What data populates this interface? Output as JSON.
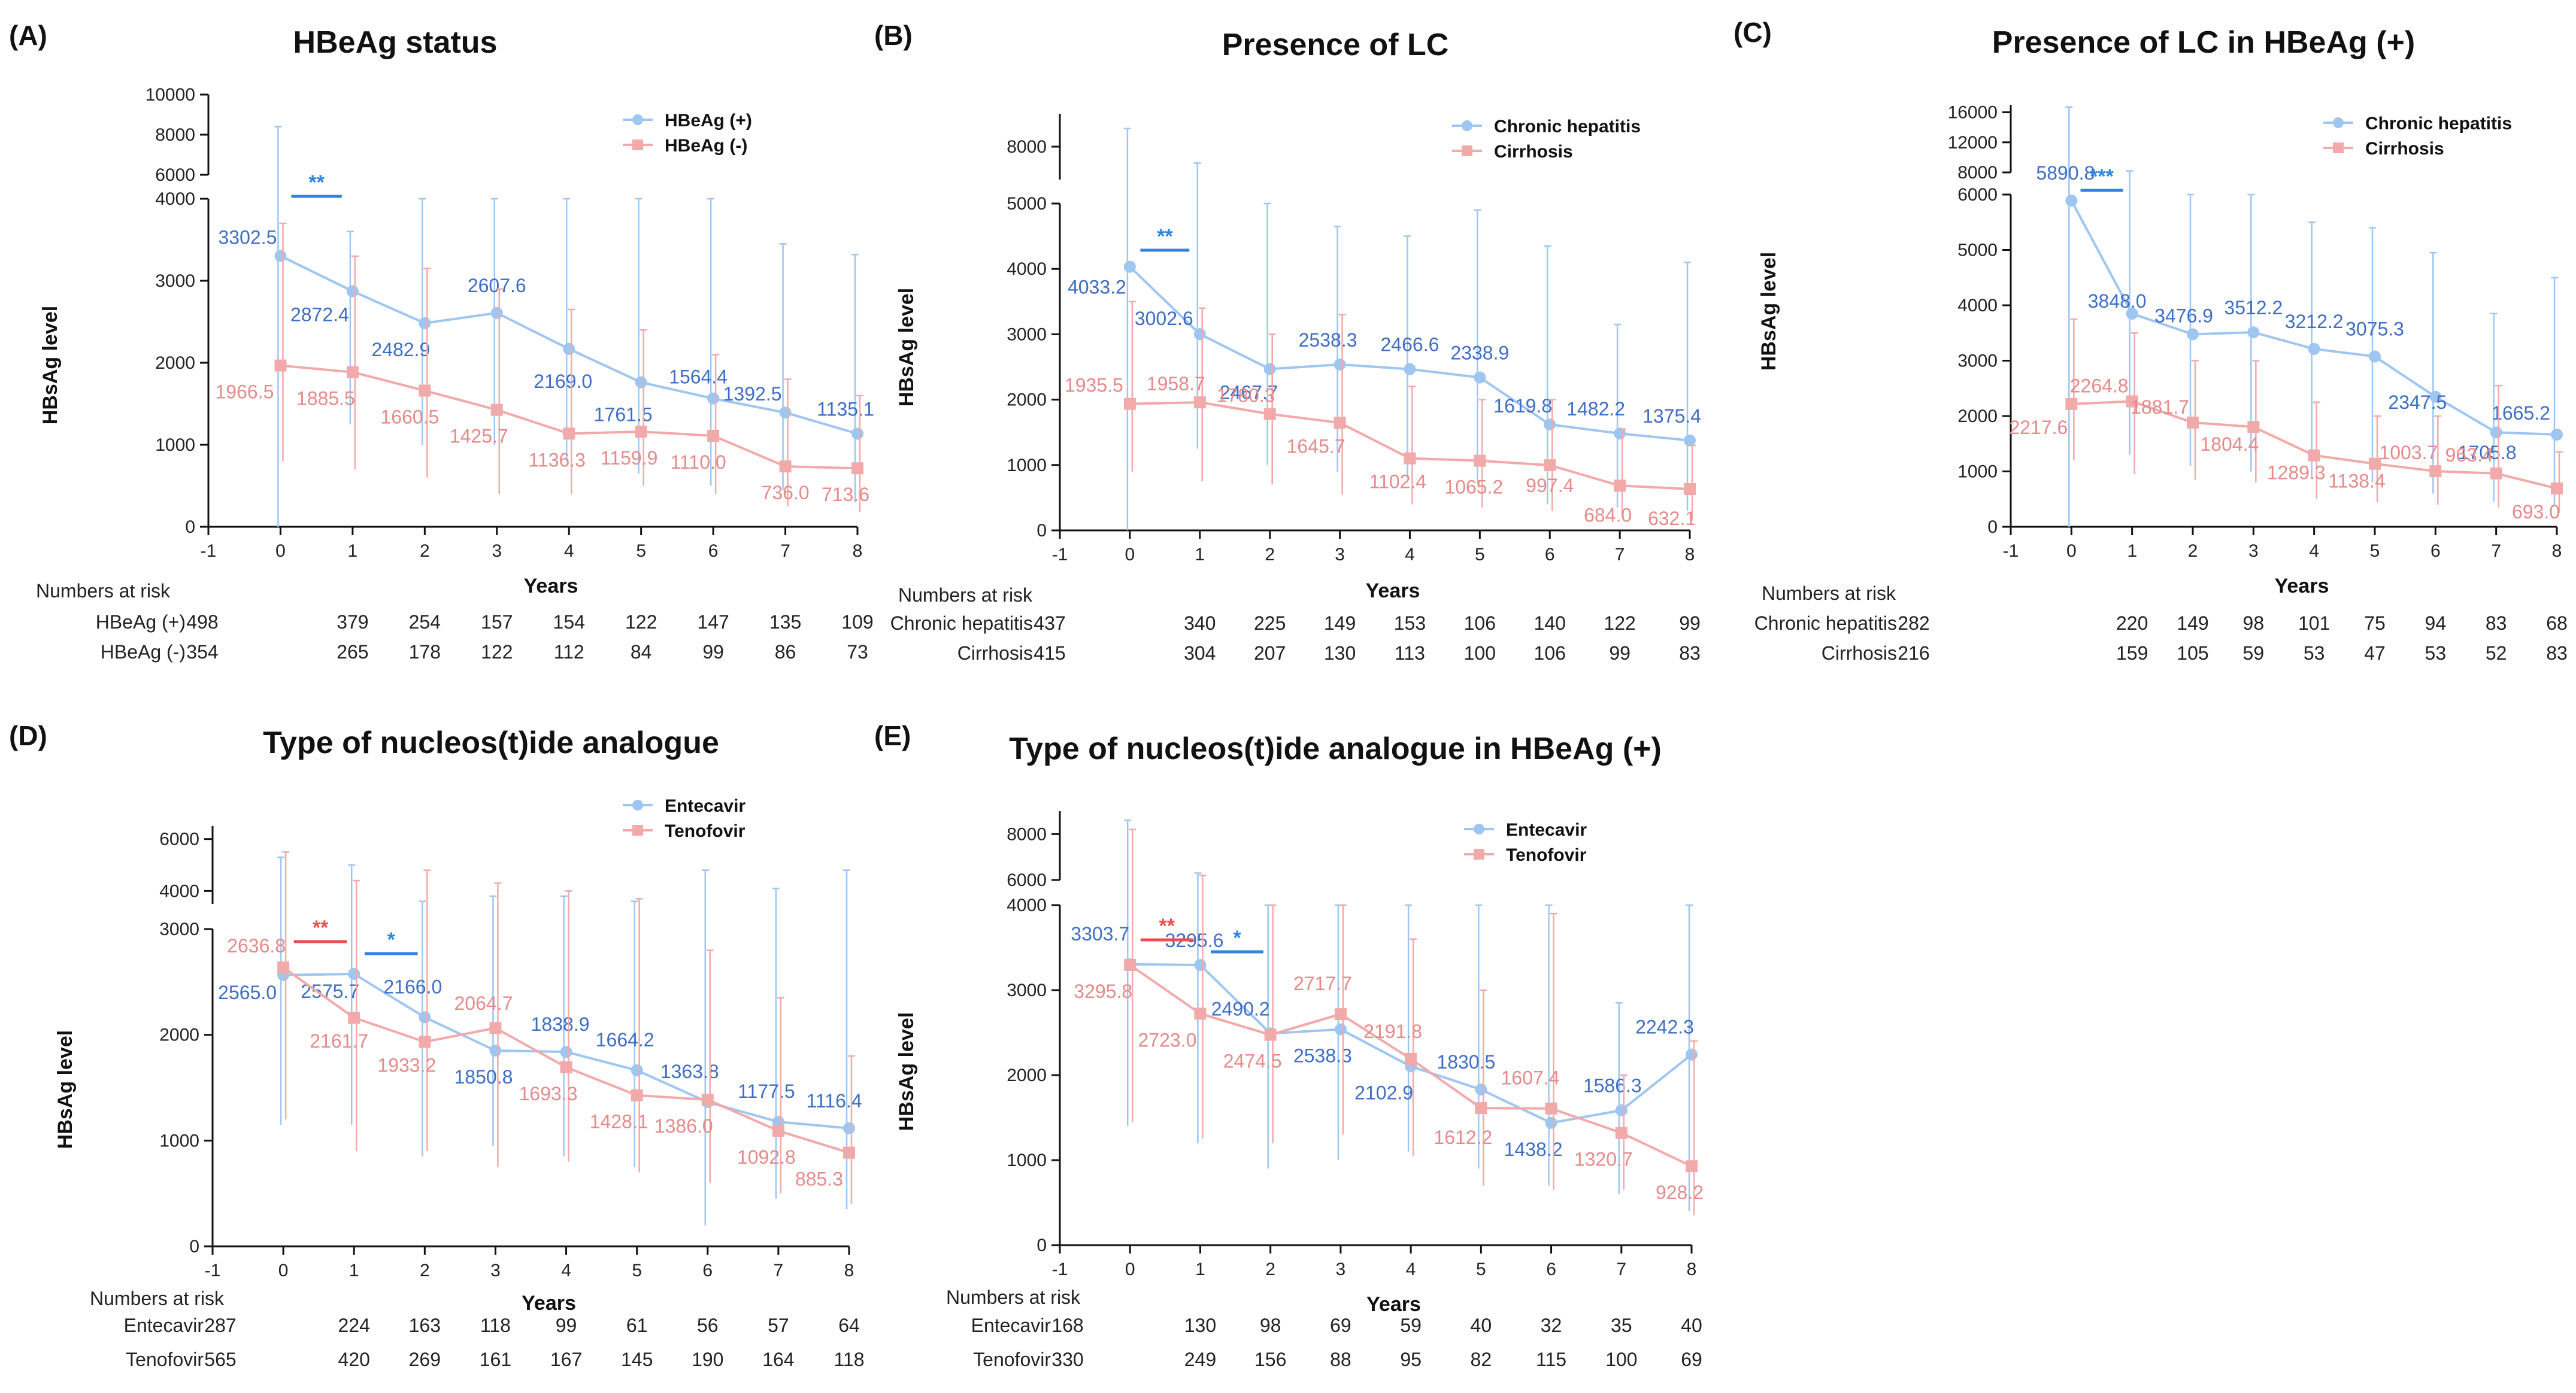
{
  "colors": {
    "blue_line": "#9ec6f0",
    "blue_text": "#3e6ec4",
    "blue_sig": "#2f84e0",
    "red_line": "#f2a9a9",
    "red_text": "#e68a8a",
    "red_sig": "#ec4f4f",
    "axis": "#111111"
  },
  "chart_data": [
    {
      "letter": "(A)",
      "title": "HBeAg status",
      "type": "line",
      "xlabel": "Years",
      "ylabel": "HBsAg level",
      "x": [
        0,
        1,
        2,
        3,
        4,
        5,
        6,
        7,
        8
      ],
      "xlim": [
        -1,
        8
      ],
      "x_ticks": [
        "-1",
        "0",
        "1",
        "2",
        "3",
        "4",
        "5",
        "6",
        "7",
        "8"
      ],
      "ylim_lower": [
        0,
        4000
      ],
      "y_ticks_lower": [
        "0",
        "1000",
        "2000",
        "3000",
        "4000"
      ],
      "ylim_upper": [
        6000,
        10000
      ],
      "y_ticks_upper": [
        "6000",
        "8000",
        "10000"
      ],
      "legend": "top-right",
      "series": [
        {
          "name": "HBeAg (+)",
          "marker": "circle",
          "color": "blue",
          "values": [
            3302.5,
            2872.4,
            2482.9,
            2607.6,
            2169.0,
            1761.5,
            1564.4,
            1392.5,
            1135.1
          ],
          "labels": [
            "3302.5",
            "2872.4",
            "2482.9",
            "2607.6",
            "2169.0",
            "1761.5",
            "1564.4",
            "1392.5",
            "1135.1"
          ],
          "err_up": [
            8400,
            3600,
            4000,
            4000,
            4000,
            4000,
            4000,
            3450,
            3320
          ],
          "err_low": [
            0,
            1250,
            1000,
            1000,
            800,
            650,
            500,
            450,
            300
          ]
        },
        {
          "name": "HBeAg (-)",
          "marker": "square",
          "color": "red",
          "values": [
            1966.5,
            1885.5,
            1660.5,
            1425.7,
            1136.3,
            1159.9,
            1110.0,
            736.0,
            713.6
          ],
          "labels": [
            "1966.5",
            "1885.5",
            "1660.5",
            "1425.7",
            "1136.3",
            "1159.9",
            "1110.0",
            "736.0",
            "713.6"
          ],
          "err_up": [
            3700,
            3300,
            3150,
            2900,
            2650,
            2400,
            2100,
            1800,
            1600
          ],
          "err_low": [
            800,
            700,
            600,
            400,
            400,
            500,
            400,
            250,
            180
          ]
        }
      ],
      "significance": [
        {
          "text": "**",
          "x_from": 0.15,
          "x_to": 0.85,
          "color": "blue"
        }
      ],
      "risk_header": "Numbers at risk",
      "risk": [
        {
          "label": "HBeAg (+)",
          "values": [
            "498",
            "379",
            "254",
            "157",
            "154",
            "122",
            "147",
            "135",
            "109"
          ]
        },
        {
          "label": "HBeAg (-)",
          "values": [
            "354",
            "265",
            "178",
            "122",
            "112",
            "84",
            "99",
            "86",
            "73"
          ]
        }
      ]
    },
    {
      "letter": "(B)",
      "title": "Presence of LC",
      "type": "line",
      "xlabel": "Years",
      "ylabel": "HBsAg level",
      "x": [
        0,
        1,
        2,
        3,
        4,
        5,
        6,
        7,
        8
      ],
      "xlim": [
        -1,
        8
      ],
      "x_ticks": [
        "-1",
        "0",
        "1",
        "2",
        "3",
        "4",
        "5",
        "6",
        "7",
        "8"
      ],
      "ylim_lower": [
        0,
        5000
      ],
      "y_ticks_lower": [
        "0",
        "1000",
        "2000",
        "3000",
        "4000",
        "5000"
      ],
      "ylim_upper": [
        7000,
        9000
      ],
      "y_ticks_upper": [
        "8000"
      ],
      "legend": "top-right",
      "series": [
        {
          "name": "Chronic hepatitis",
          "marker": "circle",
          "color": "blue",
          "values": [
            4033.2,
            3002.6,
            2467.7,
            2538.3,
            2466.6,
            2338.9,
            1619.8,
            1482.2,
            1375.4
          ],
          "labels": [
            "4033.2",
            "3002.6",
            "2467.7",
            "2538.3",
            "2466.6",
            "2338.9",
            "1619.8",
            "1482.2",
            "1375.4"
          ],
          "err_up": [
            8550,
            7500,
            5000,
            4650,
            4500,
            4900,
            4350,
            3150,
            4100
          ],
          "err_low": [
            0,
            1250,
            1000,
            900,
            800,
            700,
            400,
            350,
            300
          ]
        },
        {
          "name": "Cirrhosis",
          "marker": "square",
          "color": "red",
          "values": [
            1935.5,
            1958.7,
            1780.3,
            1645.7,
            1102.4,
            1065.2,
            997.4,
            684.0,
            632.1
          ],
          "labels": [
            "1935.5",
            "1958.7",
            "1780.3",
            "1645.7",
            "1102.4",
            "1065.2",
            "997.4",
            "684.0",
            "632.1"
          ],
          "err_up": [
            3500,
            3400,
            3000,
            3300,
            2200,
            2000,
            2000,
            1550,
            1300
          ],
          "err_low": [
            900,
            750,
            700,
            550,
            400,
            350,
            300,
            200,
            150
          ]
        }
      ],
      "significance": [
        {
          "text": "**",
          "x_from": 0.15,
          "x_to": 0.85,
          "color": "blue"
        }
      ],
      "risk_header": "Numbers at risk",
      "risk": [
        {
          "label": "Chronic hepatitis",
          "values": [
            "437",
            "340",
            "225",
            "149",
            "153",
            "106",
            "140",
            "122",
            "99"
          ]
        },
        {
          "label": "Cirrhosis",
          "values": [
            "415",
            "304",
            "207",
            "130",
            "113",
            "100",
            "106",
            "99",
            "83"
          ]
        }
      ]
    },
    {
      "letter": "(C)",
      "title": "Presence of LC in HBeAg (+)",
      "type": "line",
      "xlabel": "Years",
      "ylabel": "HBsAg level",
      "x": [
        0,
        1,
        2,
        3,
        4,
        5,
        6,
        7,
        8
      ],
      "xlim": [
        -1,
        8
      ],
      "x_ticks": [
        "-1",
        "0",
        "1",
        "2",
        "3",
        "4",
        "5",
        "6",
        "7",
        "8"
      ],
      "ylim_lower": [
        0,
        6000
      ],
      "y_ticks_lower": [
        "0",
        "1000",
        "2000",
        "3000",
        "4000",
        "5000",
        "6000"
      ],
      "ylim_upper": [
        8000,
        17000
      ],
      "y_ticks_upper": [
        "8000",
        "12000",
        "16000"
      ],
      "legend": "top-right",
      "series": [
        {
          "name": "Chronic hepatitis",
          "marker": "circle",
          "color": "blue",
          "values": [
            5890.8,
            3848.0,
            3476.9,
            3512.2,
            3212.2,
            3075.3,
            2347.5,
            1705.8,
            1665.2
          ],
          "labels": [
            "5890.8",
            "3848.0",
            "3476.9",
            "3512.2",
            "3212.2",
            "3075.3",
            "2347.5",
            "1705.8",
            "1665.2"
          ],
          "err_up": [
            16700,
            8200,
            6000,
            6000,
            5500,
            5400,
            4950,
            3850,
            4500
          ],
          "err_low": [
            0,
            1300,
            1100,
            1000,
            900,
            800,
            600,
            450,
            400
          ]
        },
        {
          "name": "Cirrhosis",
          "marker": "square",
          "color": "red",
          "values": [
            2217.6,
            2264.8,
            1881.7,
            1804.4,
            1289.3,
            1138.4,
            1003.7,
            963.4,
            693.0
          ],
          "labels": [
            "2217.6",
            "2264.8",
            "1881.7",
            "1804.4",
            "1289.3",
            "1138.4",
            "1003.7",
            "963.4",
            "693.0"
          ],
          "err_up": [
            3750,
            3500,
            3000,
            3000,
            2250,
            2000,
            2000,
            2550,
            1350
          ],
          "err_low": [
            1200,
            950,
            850,
            800,
            500,
            450,
            400,
            350,
            250
          ]
        }
      ],
      "significance": [
        {
          "text": "***",
          "x_from": 0.15,
          "x_to": 0.85,
          "color": "blue"
        }
      ],
      "risk_header": "Numbers at risk",
      "risk": [
        {
          "label": "Chronic hepatitis",
          "values": [
            "282",
            "220",
            "149",
            "98",
            "101",
            "75",
            "94",
            "83",
            "68"
          ]
        },
        {
          "label": "Cirrhosis",
          "values": [
            "216",
            "159",
            "105",
            "59",
            "53",
            "47",
            "53",
            "52",
            "83"
          ]
        }
      ]
    },
    {
      "letter": "(D)",
      "title": "Type of nucleos(t)ide analogue",
      "type": "line",
      "xlabel": "Years",
      "ylabel": "HBsAg level",
      "x": [
        0,
        1,
        2,
        3,
        4,
        5,
        6,
        7,
        8
      ],
      "xlim": [
        -1,
        8
      ],
      "x_ticks": [
        "-1",
        "0",
        "1",
        "2",
        "3",
        "4",
        "5",
        "6",
        "7",
        "8"
      ],
      "ylim_lower": [
        0,
        3000
      ],
      "y_ticks_lower": [
        "0",
        "1000",
        "2000",
        "3000"
      ],
      "ylim_upper": [
        3500,
        6500
      ],
      "y_ticks_upper": [
        "4000",
        "6000"
      ],
      "legend": "top-right",
      "series": [
        {
          "name": "Entecavir",
          "marker": "circle",
          "color": "blue",
          "values": [
            2565.0,
            2575.7,
            2166.0,
            1850.8,
            1838.9,
            1664.2,
            1363.8,
            1177.5,
            1116.4
          ],
          "labels": [
            "2565.0",
            "2575.7",
            "2166.0",
            "1850.8",
            "1838.9",
            "1664.2",
            "1363.8",
            "1177.5",
            "1116.4"
          ],
          "err_up": [
            5300,
            5000,
            3600,
            3800,
            3800,
            3600,
            4800,
            4100,
            4800
          ],
          "err_low": [
            1150,
            1150,
            850,
            950,
            850,
            750,
            200,
            450,
            350
          ]
        },
        {
          "name": "Tenofovir",
          "marker": "square",
          "color": "red",
          "values": [
            2636.8,
            2161.7,
            1933.2,
            2064.7,
            1693.3,
            1428.1,
            1386.0,
            1092.8,
            885.3
          ],
          "labels": [
            "2636.8",
            "2161.7",
            "1933.2",
            "2064.7",
            "1693.3",
            "1428.1",
            "1386.0",
            "1092.8",
            "885.3"
          ],
          "err_up": [
            5500,
            4400,
            4800,
            4300,
            4000,
            3700,
            2800,
            2350,
            1800
          ],
          "err_low": [
            1200,
            900,
            900,
            750,
            800,
            700,
            600,
            500,
            400
          ]
        }
      ],
      "significance": [
        {
          "text": "**",
          "x_from": 0.15,
          "x_to": 0.9,
          "color": "red"
        },
        {
          "text": "*",
          "x_from": 1.15,
          "x_to": 1.9,
          "color": "blue"
        }
      ],
      "risk_header": "Numbers at risk",
      "risk": [
        {
          "label": "Entecavir",
          "values": [
            "287",
            "224",
            "163",
            "118",
            "99",
            "61",
            "56",
            "57",
            "64"
          ]
        },
        {
          "label": "Tenofovir",
          "values": [
            "565",
            "420",
            "269",
            "161",
            "167",
            "145",
            "190",
            "164",
            "118"
          ]
        }
      ]
    },
    {
      "letter": "(E)",
      "title": "Type of nucleos(t)ide analogue in HBeAg (+)",
      "type": "line",
      "xlabel": "Years",
      "ylabel": "HBsAg level",
      "x": [
        0,
        1,
        2,
        3,
        4,
        5,
        6,
        7,
        8
      ],
      "xlim": [
        -1,
        8
      ],
      "x_ticks": [
        "-1",
        "0",
        "1",
        "2",
        "3",
        "4",
        "5",
        "6",
        "7",
        "8"
      ],
      "ylim_lower": [
        0,
        4000
      ],
      "y_ticks_lower": [
        "0",
        "1000",
        "2000",
        "3000",
        "4000"
      ],
      "ylim_upper": [
        6000,
        9000
      ],
      "y_ticks_upper": [
        "6000",
        "8000"
      ],
      "legend": "top-right",
      "series": [
        {
          "name": "Entecavir",
          "marker": "circle",
          "color": "blue",
          "values": [
            3303.7,
            3295.6,
            2490.2,
            2538.3,
            2102.9,
            1830.5,
            1438.2,
            1586.3,
            2242.3
          ],
          "labels": [
            "3303.7",
            "3295.6",
            "2490.2",
            "2538.3",
            "2102.9",
            "1830.5",
            "1438.2",
            "1586.3",
            "2242.3"
          ],
          "err_up": [
            8600,
            6300,
            4000,
            4000,
            4000,
            4000,
            4000,
            2850,
            4000
          ],
          "err_low": [
            1400,
            1200,
            900,
            1000,
            1100,
            900,
            700,
            600,
            400
          ]
        },
        {
          "name": "Tenofovir",
          "marker": "square",
          "color": "red",
          "values": [
            3295.8,
            2723.0,
            2474.5,
            2717.7,
            2191.8,
            1612.2,
            1607.4,
            1320.7,
            928.2
          ],
          "labels": [
            "3295.8",
            "2723.0",
            "2474.5",
            "2717.7",
            "2191.8",
            "1612.2",
            "1607.4",
            "1320.7",
            "928.2"
          ],
          "err_up": [
            8200,
            6200,
            4000,
            4000,
            3600,
            3000,
            3900,
            2000,
            2400
          ],
          "err_low": [
            1450,
            1250,
            1200,
            1300,
            1050,
            700,
            650,
            650,
            350
          ]
        }
      ],
      "significance": [
        {
          "text": "**",
          "x_from": 0.15,
          "x_to": 0.9,
          "color": "red"
        },
        {
          "text": "*",
          "x_from": 1.15,
          "x_to": 1.9,
          "color": "blue"
        }
      ],
      "risk_header": "Numbers at risk",
      "risk": [
        {
          "label": "Entecavir",
          "values": [
            "168",
            "130",
            "98",
            "69",
            "59",
            "40",
            "32",
            "35",
            "40"
          ]
        },
        {
          "label": "Tenofovir",
          "values": [
            "330",
            "249",
            "156",
            "88",
            "95",
            "82",
            "115",
            "100",
            "69"
          ]
        }
      ]
    }
  ]
}
